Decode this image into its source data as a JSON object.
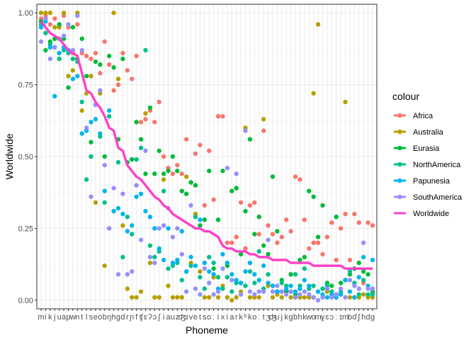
{
  "chart_data": {
    "type": "scatter",
    "xlabel": "Phoneme",
    "ylabel": "Worldwide",
    "ylim": [
      -0.03,
      1.03
    ],
    "y_ticks": [
      "0.00",
      "0.25",
      "0.50",
      "0.75",
      "1.00"
    ],
    "y_tick_values": [
      0,
      0.25,
      0.5,
      0.75,
      1.0
    ],
    "grid": true,
    "legend_title": "colour",
    "legend_position": "right",
    "categories": [
      "m",
      "i",
      "k",
      "j",
      "u",
      "a",
      "p",
      "w",
      "n",
      "t",
      "l",
      "s",
      "e",
      "o",
      "b",
      "ŋ",
      "h",
      "g",
      "d",
      "r",
      "ɲ",
      "f",
      "ʧ",
      "ɛ",
      "ʔ",
      "ɔ",
      "ʃ",
      "i",
      "a",
      "u",
      "z",
      "ʤ",
      "ɜ",
      "v",
      "e",
      "t",
      "s",
      "o",
      "ː",
      "i",
      "x",
      "i",
      "a",
      "r",
      "k",
      "ʰ",
      "k",
      "o",
      "ː",
      "t",
      "ʒ",
      "ʤ",
      "u",
      "j",
      "k",
      "g",
      "b",
      "h",
      "k",
      "w",
      "o",
      "m",
      "ɣ",
      "ɛ",
      "ɔ",
      "ː",
      "ɪ",
      "m",
      "b",
      "ɗ",
      "ʃ",
      "h",
      "d",
      "g"
    ],
    "x_tick_labels": [
      "m",
      "i",
      "k",
      "j",
      "u",
      "a",
      "p",
      "w",
      "n",
      "t",
      "l",
      "s",
      "e",
      "o",
      "b",
      "ŋ",
      "h",
      "g",
      "d",
      "r",
      "ɲ",
      "f",
      "ʧ",
      "ɛ",
      "ʔ",
      "ɔ",
      "ʃ",
      "i",
      "a",
      "u",
      "z",
      "ʤ",
      "ɜ",
      "v",
      "e",
      "t",
      "s",
      "o",
      "ː",
      "i",
      "x",
      "i",
      "a",
      "r",
      "k",
      "ʰ",
      "k",
      "o",
      "ː",
      "t",
      "ʒ",
      "ʤ",
      "u",
      "j",
      "k",
      "g",
      "b",
      "h",
      "k",
      "w",
      "o",
      "m",
      "ɣ",
      "ɛ",
      "ɔ",
      "ː",
      "ɪ",
      "m",
      "b",
      "ɗ",
      "ʃ",
      "h",
      "d",
      "g"
    ],
    "series": [
      {
        "name": "Africa",
        "color": "#F8766D",
        "values": [
          0.98,
          0.99,
          0.96,
          0.98,
          0.96,
          0.99,
          0.95,
          0.86,
          0.96,
          0.86,
          0.85,
          0.84,
          0.86,
          0.79,
          0.9,
          0.82,
          0.73,
          0.75,
          0.86,
          0.8,
          0.77,
          0.85,
          0.62,
          0.63,
          0.66,
          0.62,
          0.69,
          0.5,
          0.46,
          0.44,
          0.47,
          0.44,
          0.56,
          0.41,
          0.51,
          0.54,
          0.33,
          0.52,
          0.35,
          0.64,
          0.64,
          0.2,
          0.2,
          0.22,
          0.34,
          0.18,
          0.33,
          0.34,
          0.23,
          0.59,
          0.26,
          0.23,
          0.2,
          0.22,
          0.28,
          0.24,
          0.43,
          0.42,
          0.28,
          0.18,
          0.2,
          0.2,
          0.16,
          0.22,
          0.27,
          0.14,
          0.25,
          0.3,
          0.14,
          0.3,
          0.27,
          0.06,
          0.27,
          0.26
        ]
      },
      {
        "name": "Australia",
        "color": "#B79F00",
        "values": [
          1.0,
          1.0,
          1.0,
          0.95,
          0.95,
          1.0,
          0.78,
          0.8,
          1.0,
          0.66,
          0.72,
          0.78,
          0.34,
          0.72,
          0.12,
          0.25,
          1.0,
          0.77,
          0.26,
          0.04,
          0.01,
          0.01,
          0.03,
          0.65,
          0.13,
          0.01,
          0.01,
          0.42,
          0.05,
          0.01,
          0.01,
          0.01,
          0.43,
          0.13,
          0.3,
          0.1,
          0.01,
          0.01,
          0.08,
          0.01,
          0.05,
          0.01,
          0.0,
          0.01,
          0.03,
          0.6,
          0.01,
          0.01,
          0.01,
          0.63,
          0.05,
          0.01,
          0.02,
          0.01,
          0.03,
          0.01,
          0.01,
          0.01,
          0.01,
          0.01,
          0.72,
          0.96,
          0.04,
          0.03,
          0.01,
          0.01,
          0.02,
          0.69,
          0.01,
          0.01,
          0.01,
          0.02,
          0.01,
          0.01
        ]
      },
      {
        "name": "Eurasia",
        "color": "#00BA38",
        "values": [
          0.97,
          0.87,
          0.9,
          0.91,
          0.96,
          0.91,
          0.74,
          0.95,
          0.84,
          0.91,
          0.78,
          0.55,
          0.83,
          0.82,
          0.5,
          0.85,
          0.81,
          0.56,
          0.84,
          0.48,
          0.49,
          0.62,
          0.56,
          0.44,
          0.67,
          0.44,
          0.52,
          0.44,
          0.45,
          0.5,
          0.45,
          0.38,
          0.37,
          0.41,
          0.4,
          0.26,
          0.28,
          0.45,
          0.11,
          0.28,
          0.45,
          0.12,
          0.38,
          0.39,
          0.16,
          0.31,
          0.56,
          0.23,
          0.29,
          0.19,
          0.16,
          0.43,
          0.24,
          0.07,
          0.03,
          0.09,
          0.02,
          0.14,
          0.15,
          0.38,
          0.36,
          0.22,
          0.33,
          0.06,
          0.05,
          0.29,
          0.06,
          0.07,
          0.09,
          0.11,
          0.13,
          0.1,
          0.09,
          0.03
        ]
      },
      {
        "name": "NorthAmerica",
        "color": "#00C08B",
        "values": [
          0.96,
          0.93,
          0.89,
          0.88,
          0.84,
          0.87,
          0.86,
          0.84,
          0.83,
          0.69,
          0.42,
          0.5,
          0.68,
          0.57,
          0.34,
          0.64,
          0.31,
          0.48,
          0.15,
          0.29,
          0.23,
          0.49,
          0.53,
          0.87,
          0.19,
          0.15,
          0.17,
          0.38,
          0.11,
          0.12,
          0.13,
          0.07,
          0.1,
          0.12,
          0.29,
          0.08,
          0.04,
          0.15,
          0.13,
          0.08,
          0.04,
          0.08,
          0.03,
          0.06,
          0.06,
          0.05,
          0.1,
          0.06,
          0.17,
          0.04,
          0.09,
          0.05,
          0.03,
          0.06,
          0.05,
          0.03,
          0.09,
          0.05,
          0.11,
          0.04,
          0.05,
          0.03,
          0.04,
          0.05,
          0.03,
          0.02,
          0.03,
          0.07,
          0.1,
          0.06,
          0.02,
          0.07,
          0.02,
          0.02
        ]
      },
      {
        "name": "Papunesia",
        "color": "#00B4F0",
        "values": [
          0.95,
          0.97,
          0.88,
          0.71,
          0.86,
          0.88,
          0.87,
          0.77,
          0.78,
          0.58,
          0.59,
          0.62,
          0.63,
          0.58,
          0.38,
          0.66,
          0.31,
          0.32,
          0.3,
          0.24,
          0.26,
          0.36,
          0.37,
          0.31,
          0.29,
          0.25,
          0.18,
          0.14,
          0.25,
          0.13,
          0.14,
          0.24,
          0.1,
          0.15,
          0.12,
          0.28,
          0.13,
          0.1,
          0.09,
          0.04,
          0.16,
          0.13,
          0.09,
          0.07,
          0.06,
          0.1,
          0.13,
          0.09,
          0.07,
          0.12,
          0.06,
          0.05,
          0.03,
          0.03,
          0.04,
          0.05,
          0.03,
          0.04,
          0.07,
          0.05,
          0.01,
          0.03,
          0.02,
          0.01,
          0.02,
          0.01,
          0.02,
          0.07,
          0.03,
          0.01,
          0.08,
          0.15,
          0.05,
          0.14
        ]
      },
      {
        "name": "SouthAmerica",
        "color": "#9590FF",
        "values": [
          0.9,
          0.98,
          0.84,
          0.88,
          0.91,
          0.92,
          0.96,
          0.87,
          0.99,
          0.87,
          0.6,
          0.36,
          0.68,
          0.73,
          0.47,
          0.25,
          0.39,
          0.09,
          0.37,
          0.09,
          0.1,
          0.4,
          0.21,
          0.52,
          0.15,
          0.13,
          0.25,
          0.26,
          0.32,
          0.22,
          0.25,
          0.16,
          0.03,
          0.33,
          0.04,
          0.02,
          0.11,
          0.06,
          0.02,
          0.03,
          0.11,
          0.46,
          0.07,
          0.44,
          0.02,
          0.59,
          0.03,
          0.02,
          0.03,
          0.03,
          0.21,
          0.03,
          0.05,
          0.03,
          0.02,
          0.03,
          0.01,
          0.02,
          0.03,
          0.02,
          0.01,
          0.0,
          0.01,
          0.04,
          0.01,
          0.02,
          0.04,
          0.01,
          0.07,
          0.05,
          0.04,
          0.2,
          0.04,
          0.04
        ]
      },
      {
        "name": "Worldwide",
        "color": "#FF40C8",
        "values": [
          0.97,
          0.95,
          0.93,
          0.92,
          0.91,
          0.89,
          0.87,
          0.86,
          0.85,
          0.79,
          0.73,
          0.72,
          0.69,
          0.67,
          0.64,
          0.6,
          0.59,
          0.53,
          0.52,
          0.47,
          0.45,
          0.43,
          0.42,
          0.4,
          0.38,
          0.36,
          0.35,
          0.33,
          0.32,
          0.3,
          0.29,
          0.28,
          0.27,
          0.26,
          0.25,
          0.25,
          0.24,
          0.24,
          0.23,
          0.22,
          0.19,
          0.18,
          0.18,
          0.17,
          0.17,
          0.17,
          0.16,
          0.16,
          0.15,
          0.15,
          0.15,
          0.14,
          0.14,
          0.14,
          0.14,
          0.13,
          0.13,
          0.13,
          0.13,
          0.13,
          0.12,
          0.12,
          0.12,
          0.12,
          0.12,
          0.12,
          0.12,
          0.11,
          0.11,
          0.11,
          0.11,
          0.11,
          0.11,
          0.11
        ]
      }
    ]
  }
}
